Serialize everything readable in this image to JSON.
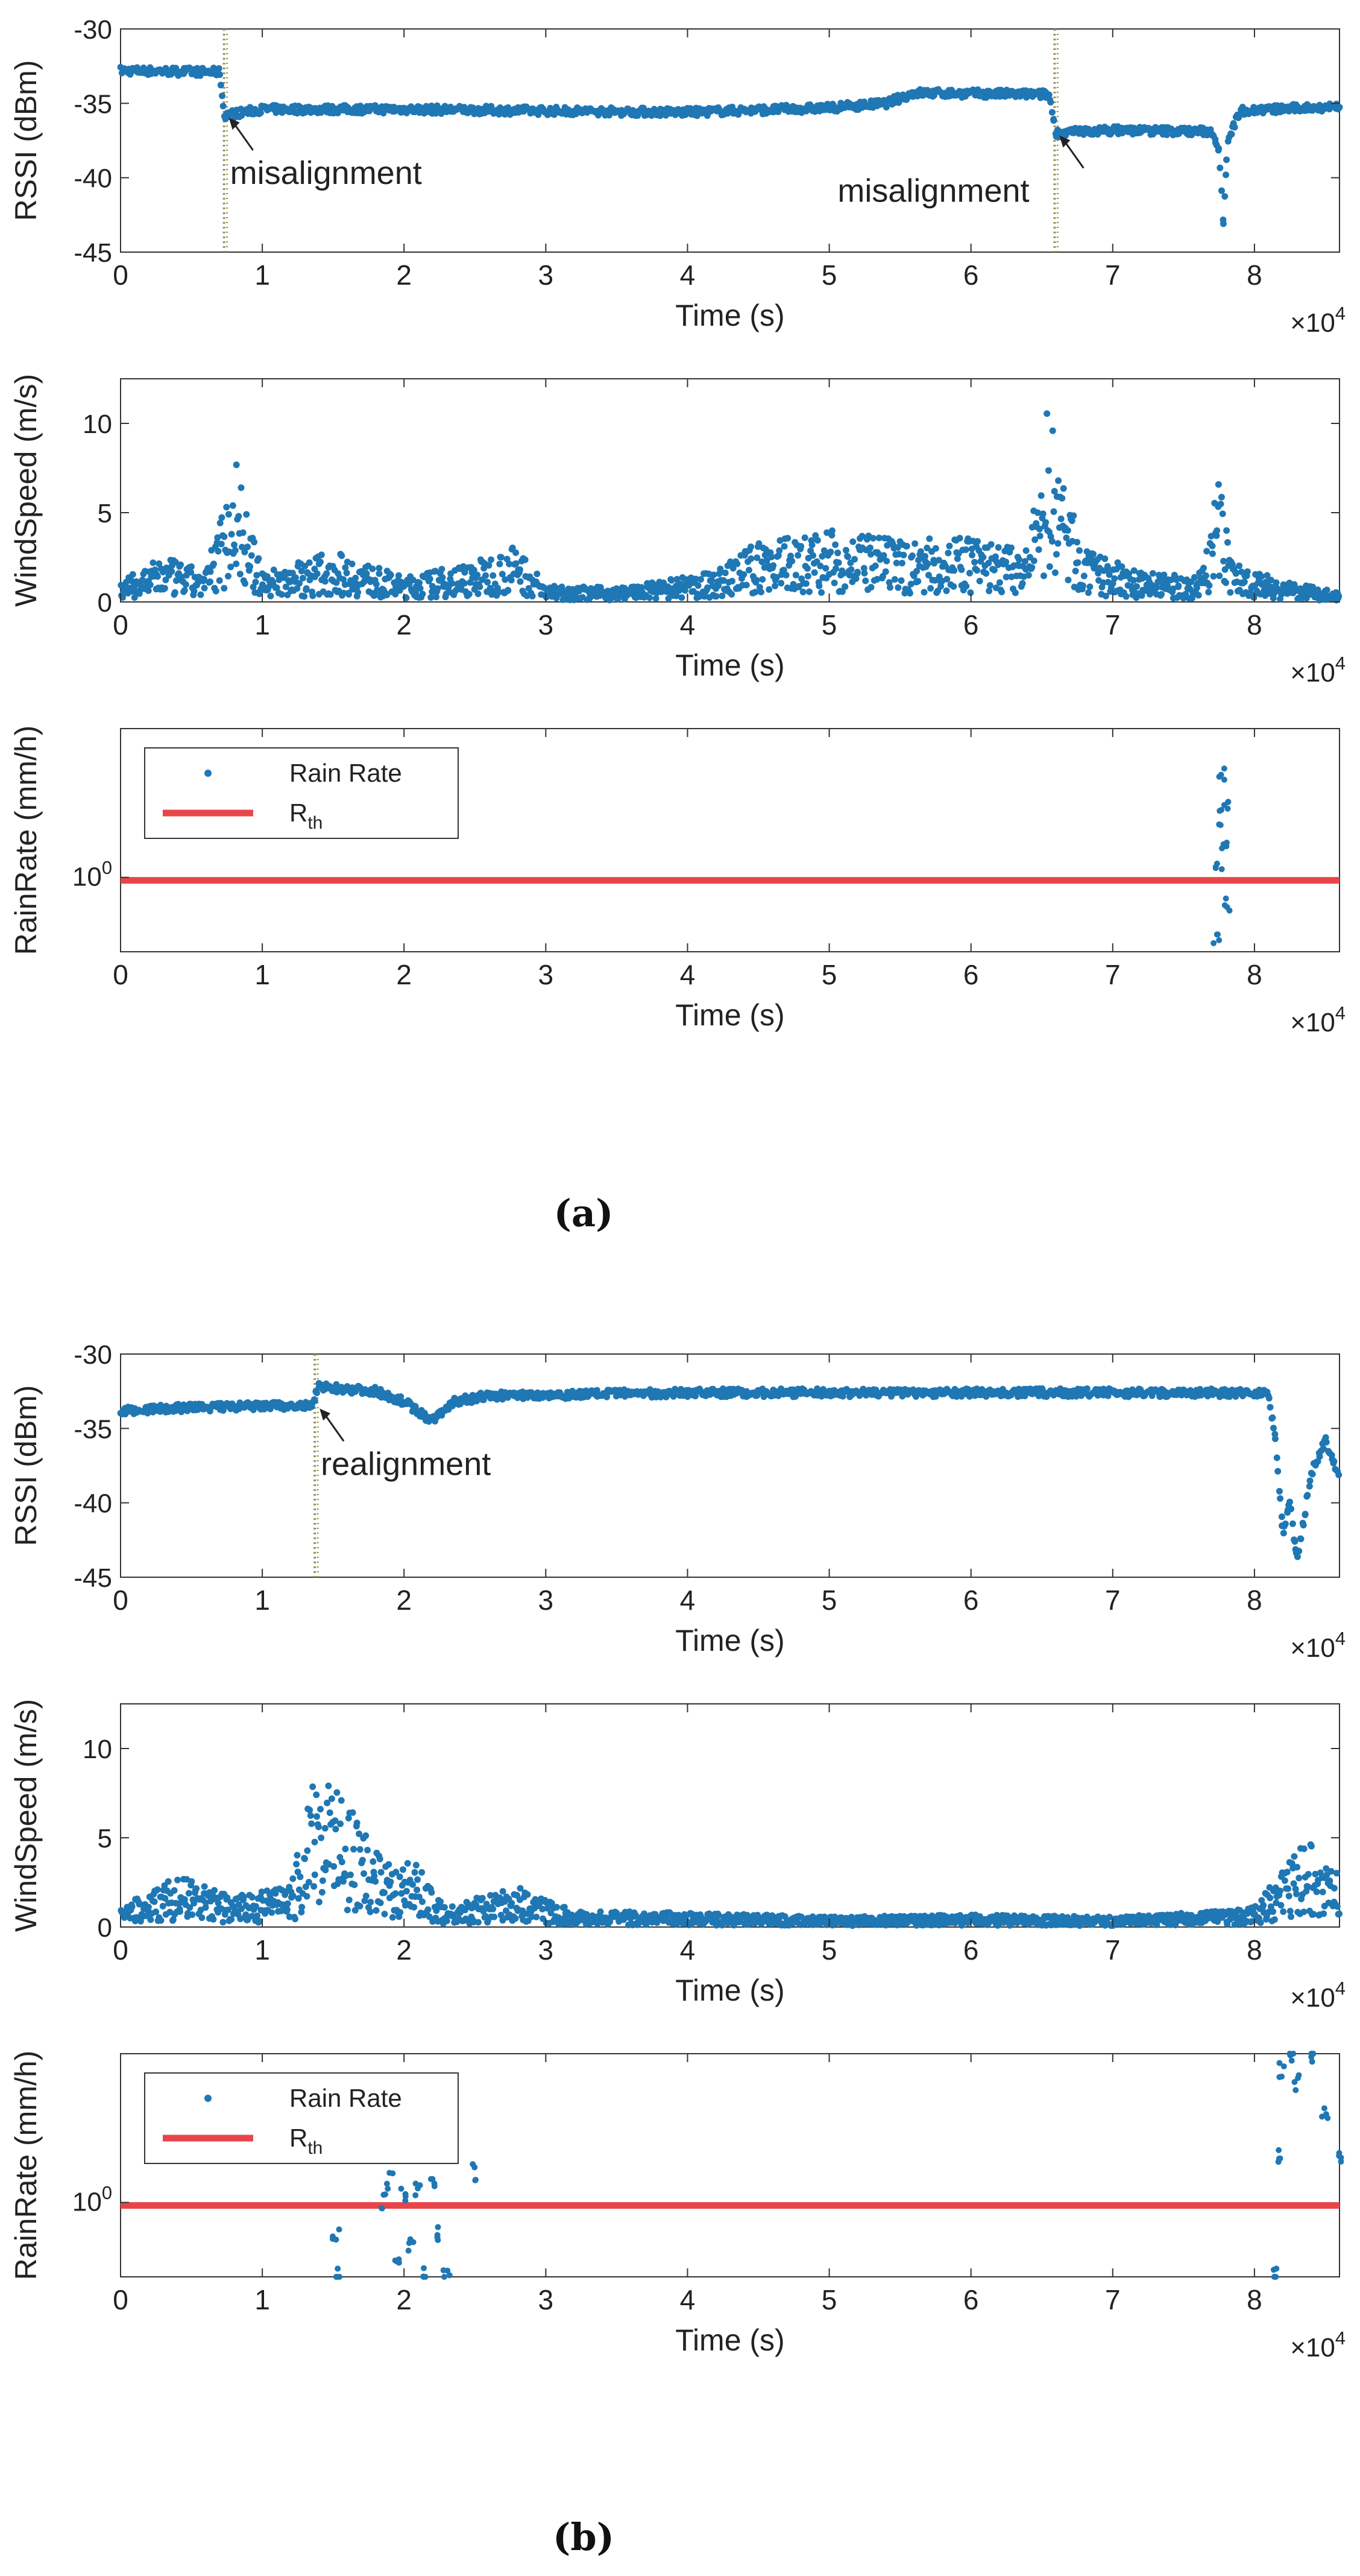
{
  "figure": {
    "label_a": "(a)",
    "label_b": "(b)"
  },
  "colors": {
    "series": "#1f77b4",
    "threshold": "#e8454a",
    "marker_line": "#a0925a",
    "axis": "#222222"
  },
  "chart_data": [
    {
      "id": "a-rssi",
      "type": "scatter",
      "xlabel": "Time (s)",
      "ylabel": "RSSI (dBm)",
      "xlim": [
        0,
        86000
      ],
      "ylim": [
        -45,
        -30
      ],
      "xticks": [
        "0",
        "1",
        "2",
        "3",
        "4",
        "5",
        "6",
        "7",
        "8"
      ],
      "xticks_values": [
        0,
        10000,
        20000,
        30000,
        40000,
        50000,
        60000,
        70000,
        80000
      ],
      "yticks": [
        "-45",
        "-40",
        "-35",
        "-30"
      ],
      "yticks_values": [
        -45,
        -40,
        -35,
        -30
      ],
      "x_exponent": "×10^4",
      "series": [
        {
          "name": "RSSI",
          "points": [
            [
              0,
              -32.8
            ],
            [
              7000,
              -32.9
            ],
            [
              7300,
              -35.8
            ],
            [
              10000,
              -35.4
            ],
            [
              20000,
              -35.4
            ],
            [
              30000,
              -35.5
            ],
            [
              40000,
              -35.6
            ],
            [
              50000,
              -35.3
            ],
            [
              54000,
              -35.0
            ],
            [
              56000,
              -34.3
            ],
            [
              65500,
              -34.4
            ],
            [
              66000,
              -37.0
            ],
            [
              70000,
              -36.8
            ],
            [
              77000,
              -36.9
            ],
            [
              77500,
              -38.0
            ],
            [
              77800,
              -43.0
            ],
            [
              78100,
              -37.5
            ],
            [
              79000,
              -35.5
            ],
            [
              86000,
              -35.2
            ]
          ]
        }
      ],
      "vlines": [
        7300,
        65900
      ],
      "annotations": [
        {
          "text": "misalignment",
          "x": 7300,
          "y": -35.8
        },
        {
          "text": "misalignment",
          "x": 65900,
          "y": -37.0
        }
      ]
    },
    {
      "id": "a-wind",
      "type": "scatter",
      "xlabel": "Time (s)",
      "ylabel": "WindSpeed (m/s)",
      "xlim": [
        0,
        86000
      ],
      "ylim": [
        0,
        12.5
      ],
      "xticks": [
        "0",
        "1",
        "2",
        "3",
        "4",
        "5",
        "6",
        "7",
        "8"
      ],
      "xticks_values": [
        0,
        10000,
        20000,
        30000,
        40000,
        50000,
        60000,
        70000,
        80000
      ],
      "yticks": [
        "0",
        "5",
        "10"
      ],
      "yticks_values": [
        0,
        5,
        10
      ],
      "x_exponent": "×10^4",
      "series": [
        {
          "name": "WindSpeed",
          "points": [
            [
              0,
              1.0
            ],
            [
              3000,
              2.2
            ],
            [
              6000,
              1.5
            ],
            [
              7500,
              5.5
            ],
            [
              8000,
              8.0
            ],
            [
              9000,
              4.0
            ],
            [
              10000,
              1.5
            ],
            [
              15000,
              2.5
            ],
            [
              20000,
              1.2
            ],
            [
              25000,
              2.0
            ],
            [
              28000,
              2.8
            ],
            [
              30000,
              0.8
            ],
            [
              35000,
              0.7
            ],
            [
              38000,
              1.0
            ],
            [
              42000,
              1.5
            ],
            [
              45000,
              3.0
            ],
            [
              50000,
              3.5
            ],
            [
              55000,
              3.0
            ],
            [
              60000,
              3.2
            ],
            [
              64000,
              2.5
            ],
            [
              65500,
              10.0
            ],
            [
              66500,
              6.0
            ],
            [
              68000,
              2.5
            ],
            [
              72000,
              1.5
            ],
            [
              76000,
              1.2
            ],
            [
              77500,
              6.0
            ],
            [
              78500,
              2.0
            ],
            [
              82000,
              1.0
            ],
            [
              86000,
              0.5
            ]
          ]
        }
      ]
    },
    {
      "id": "a-rain",
      "type": "scatter",
      "xlabel": "Time (s)",
      "ylabel": "RainRate (mm/h)",
      "xlim": [
        0,
        86000
      ],
      "ylim_log": [
        -0.5,
        1.0
      ],
      "log_y": true,
      "xticks": [
        "0",
        "1",
        "2",
        "3",
        "4",
        "5",
        "6",
        "7",
        "8"
      ],
      "xticks_values": [
        0,
        10000,
        20000,
        30000,
        40000,
        50000,
        60000,
        70000,
        80000
      ],
      "ytick_label": "10^0",
      "x_exponent": "×10^4",
      "threshold_label": "R_th",
      "threshold_log": -0.02,
      "legend": {
        "series": "Rain Rate",
        "threshold_base": "R",
        "threshold_sub": "th",
        "position": "top-left"
      },
      "series": [
        {
          "name": "Rain Rate",
          "points": [
            [
              77300,
              -0.4
            ],
            [
              77500,
              0.05
            ],
            [
              77600,
              0.4
            ],
            [
              77700,
              0.7
            ],
            [
              77800,
              0.2
            ],
            [
              78000,
              0.5
            ],
            [
              78100,
              -0.2
            ]
          ]
        }
      ]
    },
    {
      "id": "b-rssi",
      "type": "scatter",
      "xlabel": "Time (s)",
      "ylabel": "RSSI (dBm)",
      "xlim": [
        0,
        86000
      ],
      "ylim": [
        -45,
        -30
      ],
      "xticks": [
        "0",
        "1",
        "2",
        "3",
        "4",
        "5",
        "6",
        "7",
        "8"
      ],
      "xticks_values": [
        0,
        10000,
        20000,
        30000,
        40000,
        50000,
        60000,
        70000,
        80000
      ],
      "yticks": [
        "-45",
        "-40",
        "-35",
        "-30"
      ],
      "yticks_values": [
        -45,
        -40,
        -35,
        -30
      ],
      "x_exponent": "×10^4",
      "series": [
        {
          "name": "RSSI",
          "points": [
            [
              0,
              -33.8
            ],
            [
              5000,
              -33.6
            ],
            [
              10000,
              -33.5
            ],
            [
              13500,
              -33.5
            ],
            [
              14000,
              -32.2
            ],
            [
              18000,
              -32.5
            ],
            [
              20000,
              -33.2
            ],
            [
              22000,
              -34.5
            ],
            [
              23500,
              -33.2
            ],
            [
              26000,
              -32.8
            ],
            [
              40000,
              -32.6
            ],
            [
              60000,
              -32.6
            ],
            [
              75000,
              -32.6
            ],
            [
              81000,
              -32.6
            ],
            [
              81500,
              -36.0
            ],
            [
              82000,
              -42.0
            ],
            [
              82500,
              -40.0
            ],
            [
              83000,
              -44.0
            ],
            [
              84000,
              -38.0
            ],
            [
              85000,
              -35.8
            ],
            [
              86000,
              -38.5
            ]
          ]
        }
      ],
      "vlines": [
        13700
      ],
      "annotations": [
        {
          "text": "realignment",
          "x": 13700,
          "y": -33.5
        }
      ]
    },
    {
      "id": "b-wind",
      "type": "scatter",
      "xlabel": "Time (s)",
      "ylabel": "WindSpeed (m/s)",
      "xlim": [
        0,
        86000
      ],
      "ylim": [
        0,
        12.5
      ],
      "xticks": [
        "0",
        "1",
        "2",
        "3",
        "4",
        "5",
        "6",
        "7",
        "8"
      ],
      "xticks_values": [
        0,
        10000,
        20000,
        30000,
        40000,
        50000,
        60000,
        70000,
        80000
      ],
      "yticks": [
        "0",
        "5",
        "10"
      ],
      "yticks_values": [
        0,
        5,
        10
      ],
      "x_exponent": "×10^4",
      "series": [
        {
          "name": "WindSpeed",
          "points": [
            [
              0,
              1.0
            ],
            [
              4000,
              2.5
            ],
            [
              8000,
              1.5
            ],
            [
              12000,
              2.0
            ],
            [
              14000,
              8.5
            ],
            [
              16000,
              6.0
            ],
            [
              18000,
              4.0
            ],
            [
              21000,
              3.0
            ],
            [
              23000,
              1.0
            ],
            [
              28000,
              2.0
            ],
            [
              32000,
              0.8
            ],
            [
              40000,
              0.7
            ],
            [
              50000,
              0.5
            ],
            [
              60000,
              0.6
            ],
            [
              70000,
              0.5
            ],
            [
              78000,
              0.8
            ],
            [
              80000,
              1.0
            ],
            [
              82000,
              3.0
            ],
            [
              84000,
              4.5
            ],
            [
              86000,
              2.5
            ]
          ]
        }
      ]
    },
    {
      "id": "b-rain",
      "type": "scatter",
      "xlabel": "Time (s)",
      "ylabel": "RainRate (mm/h)",
      "xlim": [
        0,
        86000
      ],
      "ylim_log": [
        -0.5,
        1.0
      ],
      "log_y": true,
      "xticks": [
        "0",
        "1",
        "2",
        "3",
        "4",
        "5",
        "6",
        "7",
        "8"
      ],
      "xticks_values": [
        0,
        10000,
        20000,
        30000,
        40000,
        50000,
        60000,
        70000,
        80000
      ],
      "ytick_label": "10^0",
      "x_exponent": "×10^4",
      "threshold_label": "R_th",
      "threshold_log": -0.02,
      "legend": {
        "series": "Rain Rate",
        "threshold_base": "R",
        "threshold_sub": "th",
        "position": "top-left"
      },
      "series": [
        {
          "name": "Rain Rate",
          "points": [
            [
              15200,
              -0.2
            ],
            [
              15300,
              -0.5
            ],
            [
              18500,
              0.0
            ],
            [
              19000,
              0.15
            ],
            [
              19600,
              -0.4
            ],
            [
              20000,
              0.05
            ],
            [
              20500,
              -0.3
            ],
            [
              21000,
              0.1
            ],
            [
              21500,
              -0.5
            ],
            [
              22000,
              0.12
            ],
            [
              22500,
              -0.2
            ],
            [
              23000,
              -0.5
            ],
            [
              25000,
              0.2
            ],
            [
              81500,
              -0.5
            ],
            [
              81800,
              0.3
            ],
            [
              82000,
              0.9
            ],
            [
              82500,
              1.0
            ],
            [
              83000,
              0.8
            ],
            [
              84000,
              0.95
            ],
            [
              85000,
              0.6
            ],
            [
              86000,
              0.3
            ]
          ]
        }
      ]
    }
  ]
}
